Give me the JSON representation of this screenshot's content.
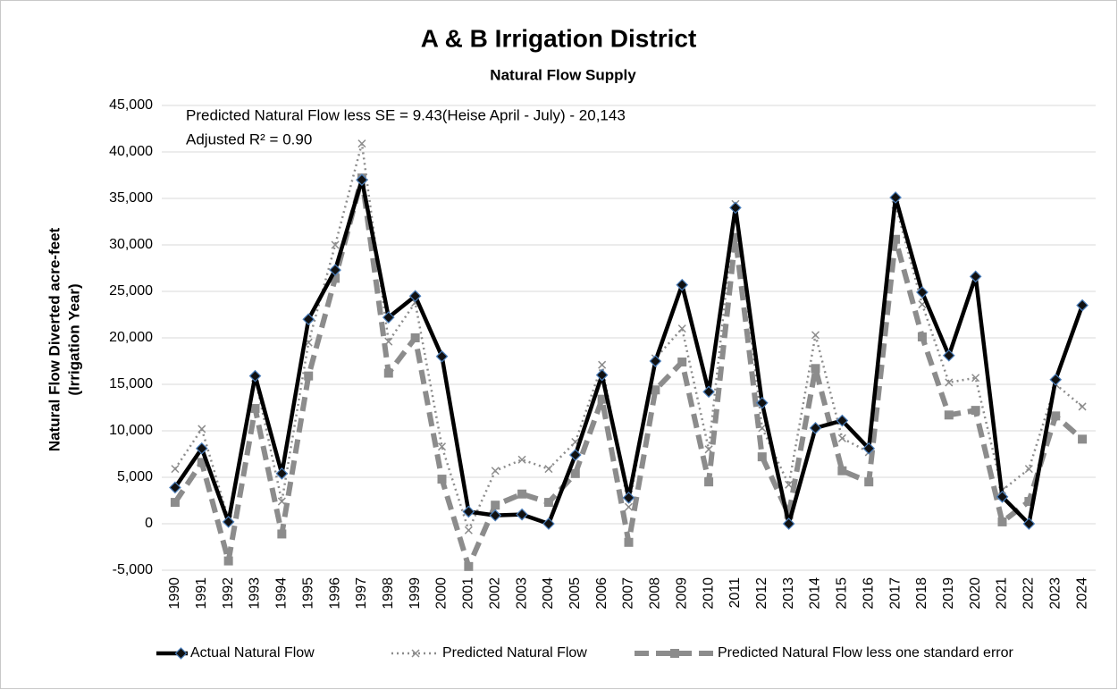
{
  "chart_data": {
    "type": "line",
    "title": "A & B Irrigation District",
    "subtitle": "Natural Flow Supply",
    "y_label": [
      "Natural Flow Diverted acre-feet",
      "(Irrigation Year)"
    ],
    "annotations": [
      "Predicted Natural Flow less SE = 9.43(Heise April - July) - 20,143",
      "Adjusted R² = 0.90"
    ],
    "categories": [
      "1990",
      "1991",
      "1992",
      "1993",
      "1994",
      "1995",
      "1996",
      "1997",
      "1998",
      "1999",
      "2000",
      "2001",
      "2002",
      "2003",
      "2004",
      "2005",
      "2006",
      "2007",
      "2008",
      "2009",
      "2010",
      "2011",
      "2012",
      "2013",
      "2014",
      "2015",
      "2016",
      "2017",
      "2018",
      "2019",
      "2020",
      "2021",
      "2022",
      "2023",
      "2024"
    ],
    "series": [
      {
        "name": "Actual Natural Flow",
        "color": "#000000",
        "marker": "diamond",
        "dash": "solid",
        "values": [
          3900,
          8100,
          200,
          15900,
          5400,
          22000,
          27300,
          37000,
          22200,
          24500,
          18000,
          1300,
          900,
          1000,
          0,
          7400,
          16000,
          2800,
          17500,
          25700,
          14200,
          34000,
          13000,
          0,
          10300,
          11100,
          8100,
          35100,
          24900,
          18100,
          26600,
          2900,
          0,
          15500,
          23500
        ]
      },
      {
        "name": "Predicted Natural Flow",
        "color": "#8c8c8c",
        "marker": "x",
        "dash": "dotted",
        "values": [
          5900,
          10200,
          500,
          15700,
          2400,
          19500,
          30000,
          40900,
          19600,
          23800,
          8300,
          -700,
          5700,
          6900,
          5900,
          8800,
          17100,
          1800,
          17800,
          21000,
          8000,
          34400,
          10300,
          4200,
          20300,
          9200,
          7700,
          34300,
          23600,
          15200,
          15700,
          3600,
          5900,
          15000,
          12600
        ]
      },
      {
        "name": "Predicted Natural Flow less one standard error",
        "color": "#8c8c8c",
        "marker": "square",
        "dash": "dashed",
        "values": [
          2300,
          6600,
          -4000,
          12400,
          -1100,
          15900,
          26400,
          37200,
          16200,
          20000,
          4800,
          -4600,
          2000,
          3200,
          2300,
          5400,
          13400,
          -2000,
          14400,
          17400,
          4500,
          30800,
          7200,
          1000,
          16700,
          5700,
          4500,
          30600,
          20100,
          11700,
          12200,
          200,
          2400,
          11600,
          9100
        ]
      }
    ],
    "ylim": [
      -5000,
      45000
    ],
    "yticks": [
      {
        "value": -5000,
        "label": "-5,000"
      },
      0,
      {
        "value": 5000,
        "label": "5,000"
      },
      {
        "value": 10000,
        "label": "10,000"
      },
      {
        "value": 15000,
        "label": "15,000"
      },
      {
        "value": 20000,
        "label": "20,000"
      },
      {
        "value": 25000,
        "label": "25,000"
      },
      {
        "value": 30000,
        "label": "30,000"
      },
      {
        "value": 35000,
        "label": "35,000"
      },
      {
        "value": 40000,
        "label": "40,000"
      },
      {
        "value": 45000,
        "label": "45,000"
      }
    ],
    "grid": true,
    "legend": "bottom"
  }
}
